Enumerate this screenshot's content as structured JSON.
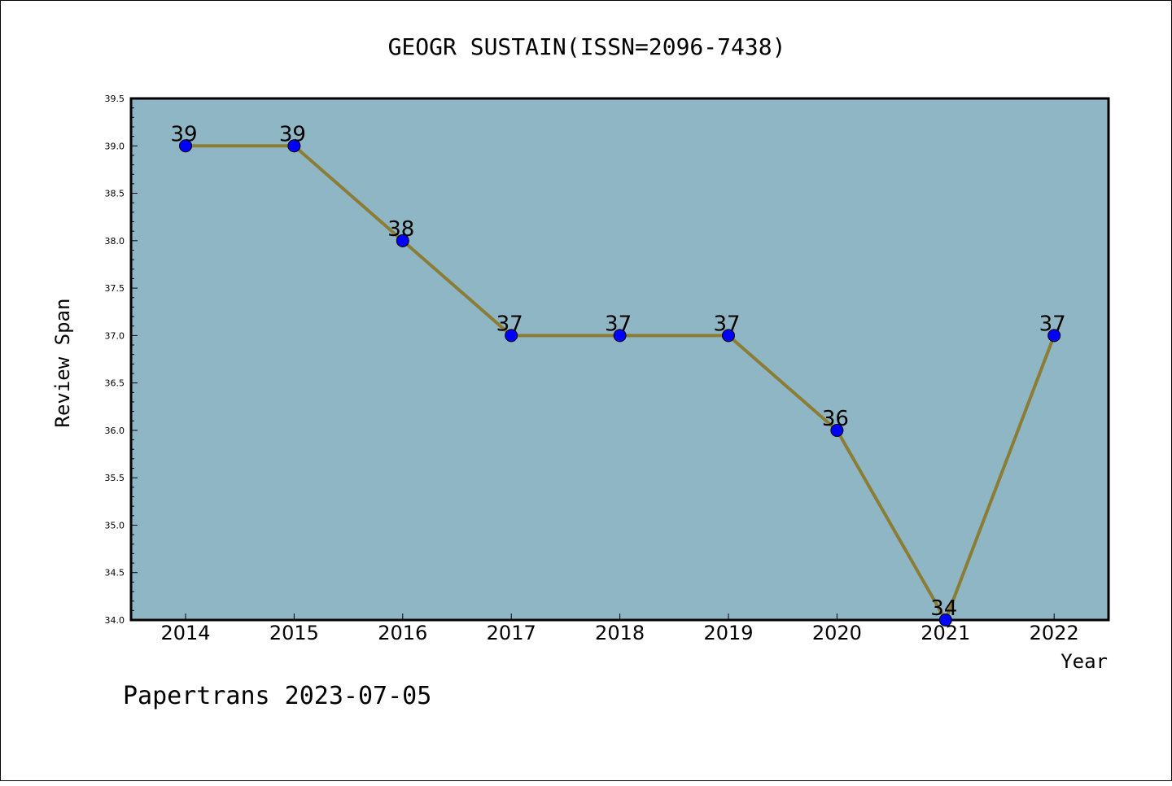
{
  "chart_data": {
    "type": "line",
    "title": "GEOGR SUSTAIN(ISSN=2096-7438)",
    "xlabel": "Year",
    "ylabel": "Review Span",
    "categories": [
      "2014",
      "2015",
      "2016",
      "2017",
      "2018",
      "2019",
      "2020",
      "2021",
      "2022"
    ],
    "series": [
      {
        "values": [
          39,
          39,
          38,
          37,
          37,
          37,
          36,
          34,
          37
        ]
      }
    ],
    "data_labels": [
      "39",
      "39",
      "38",
      "37",
      "37",
      "37",
      "36",
      "34",
      "37"
    ],
    "ylim": [
      34.0,
      39.5
    ],
    "yticks": [
      "34.0",
      "34.5",
      "35.0",
      "35.5",
      "36.0",
      "36.5",
      "37.0",
      "37.5",
      "38.0",
      "38.5",
      "39.0",
      "39.5"
    ],
    "grid": false,
    "colors": {
      "plot_background": "#8fb6c4",
      "line": "#8b7d35",
      "marker": "#0000ff"
    }
  },
  "footer": "Papertrans 2023-07-05"
}
